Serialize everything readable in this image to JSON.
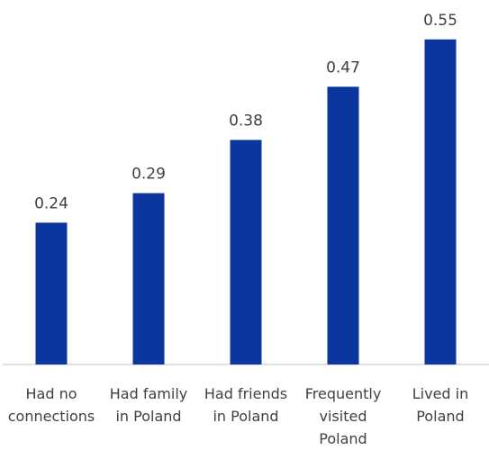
{
  "chart_data": {
    "type": "bar",
    "categories": [
      [
        "Had no",
        "connections"
      ],
      [
        "Had family",
        "in Poland"
      ],
      [
        "Had friends",
        "in Poland"
      ],
      [
        "Frequently",
        "visited",
        "Poland"
      ],
      [
        "Lived in",
        "Poland"
      ]
    ],
    "values": [
      0.24,
      0.29,
      0.38,
      0.47,
      0.55
    ],
    "value_labels": [
      "0.24",
      "0.29",
      "0.38",
      "0.47",
      "0.55"
    ],
    "title": "",
    "xlabel": "",
    "ylabel": "",
    "ylim": [
      0,
      0.6
    ],
    "grid": false,
    "bar_color": "#0A369D",
    "axis_color": "#D9D9D9"
  }
}
